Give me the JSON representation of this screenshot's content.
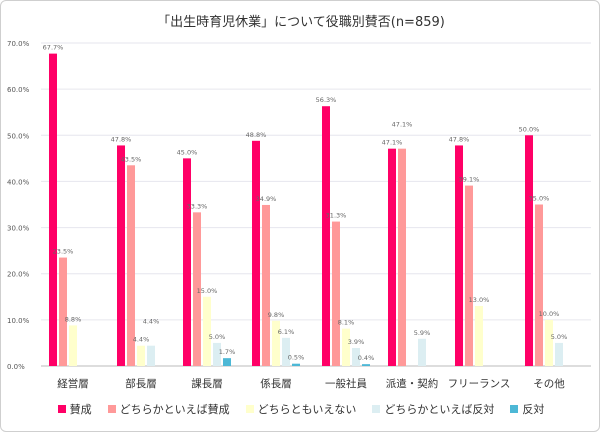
{
  "chart_data": {
    "type": "bar",
    "title": "「出生時育児休業」について役職別賛否(n=859)",
    "categories": [
      "経営層",
      "部長層",
      "課長層",
      "係長層",
      "一般社員",
      "派遣・契約",
      "フリーランス",
      "その他"
    ],
    "ylim": [
      0,
      70
    ],
    "yticks": [
      "0.0%",
      "10.0%",
      "20.0%",
      "30.0%",
      "40.0%",
      "50.0%",
      "60.0%",
      "70.0%"
    ],
    "grid": true,
    "legend": "bottom",
    "series": [
      {
        "name": "賛成",
        "color": "#ff0066",
        "values": [
          67.7,
          47.8,
          45.0,
          48.8,
          56.3,
          47.1,
          47.8,
          50.0
        ]
      },
      {
        "name": "どちらかといえば賛成",
        "color": "#ff9999",
        "values": [
          23.5,
          43.5,
          33.3,
          34.9,
          31.3,
          47.1,
          39.1,
          35.0
        ]
      },
      {
        "name": "どちらともいえない",
        "color": "#ffffcc",
        "values": [
          8.8,
          4.4,
          15.0,
          9.8,
          8.1,
          null,
          13.0,
          10.0
        ]
      },
      {
        "name": "どちらかといえば反対",
        "color": "#dceef2",
        "values": [
          null,
          4.4,
          5.0,
          6.1,
          3.9,
          5.9,
          null,
          5.0
        ]
      },
      {
        "name": "反対",
        "color": "#4db8d6",
        "values": [
          null,
          null,
          1.7,
          0.5,
          0.4,
          null,
          null,
          null
        ]
      }
    ]
  }
}
